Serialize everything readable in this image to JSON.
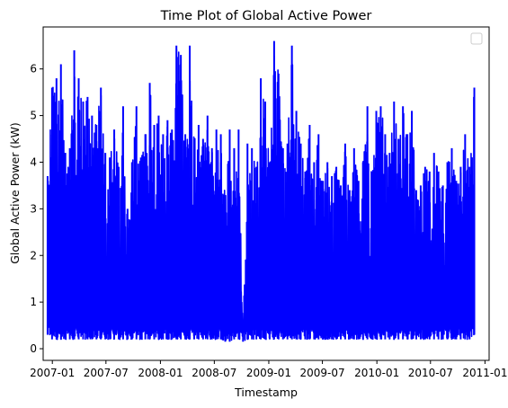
{
  "chart_data": {
    "type": "line",
    "title": "Time Plot of Global Active Power",
    "xlabel": "Timestamp",
    "ylabel": "Global Active Power (kW)",
    "ylim": [
      -0.25,
      6.9
    ],
    "xlim": [
      "2006-12-01",
      "2011-01-15"
    ],
    "grid": false,
    "legend": "top-right (empty box)",
    "x_ticks": [
      "2007-01",
      "2007-07",
      "2008-01",
      "2008-07",
      "2009-01",
      "2009-07",
      "2010-01",
      "2010-07",
      "2011-01"
    ],
    "y_ticks": [
      0,
      1,
      2,
      3,
      4,
      5,
      6
    ],
    "colors": {
      "series": "#0000ff"
    },
    "series": [
      {
        "x": [
          "2006-12-16",
          "2006-12-31",
          "2007-01-15",
          "2007-01-30",
          "2007-02-14",
          "2007-03-01",
          "2007-03-16",
          "2007-03-31",
          "2007-04-15",
          "2007-04-30",
          "2007-05-15",
          "2007-05-30",
          "2007-06-14",
          "2007-06-29",
          "2007-07-14",
          "2007-07-29",
          "2007-08-13",
          "2007-08-28",
          "2007-09-12",
          "2007-09-27",
          "2007-10-12",
          "2007-10-27",
          "2007-11-11",
          "2007-11-26",
          "2007-12-11",
          "2007-12-26",
          "2008-01-10",
          "2008-01-25",
          "2008-02-09",
          "2008-02-24",
          "2008-03-10",
          "2008-03-25",
          "2008-04-09",
          "2008-04-24",
          "2008-05-09",
          "2008-05-24",
          "2008-06-08",
          "2008-06-23",
          "2008-07-08",
          "2008-07-23",
          "2008-08-07",
          "2008-08-22",
          "2008-09-06",
          "2008-09-21",
          "2008-10-06",
          "2008-10-21",
          "2008-11-05",
          "2008-11-20",
          "2008-12-05",
          "2008-12-20",
          "2009-01-04",
          "2009-01-19",
          "2009-02-03",
          "2009-02-18",
          "2009-03-05",
          "2009-03-20",
          "2009-04-04",
          "2009-04-19",
          "2009-05-04",
          "2009-05-19",
          "2009-06-03",
          "2009-06-18",
          "2009-07-03",
          "2009-07-18",
          "2009-08-02",
          "2009-08-17",
          "2009-09-01",
          "2009-09-16",
          "2009-10-01",
          "2009-10-16",
          "2009-10-31",
          "2009-11-15",
          "2009-11-30",
          "2009-12-15",
          "2009-12-30",
          "2010-01-14",
          "2010-01-29",
          "2010-02-13",
          "2010-02-28",
          "2010-03-15",
          "2010-03-30",
          "2010-04-14",
          "2010-04-29",
          "2010-05-14",
          "2010-05-29",
          "2010-06-13",
          "2010-06-28",
          "2010-07-13",
          "2010-07-28",
          "2010-08-12",
          "2010-08-27",
          "2010-09-11",
          "2010-09-26",
          "2010-10-11",
          "2010-10-26",
          "2010-11-10",
          "2010-11-26"
        ],
        "max": [
          3.7,
          5.6,
          5.8,
          6.1,
          4.2,
          4.3,
          6.4,
          5.8,
          5.3,
          5.4,
          5.0,
          4.8,
          5.6,
          4.2,
          4.1,
          4.7,
          3.9,
          5.2,
          3.0,
          4.0,
          5.2,
          4.1,
          4.6,
          5.7,
          4.8,
          5.0,
          4.6,
          4.9,
          4.7,
          6.5,
          6.3,
          4.6,
          6.5,
          4.5,
          4.8,
          4.5,
          5.0,
          4.3,
          4.7,
          4.6,
          3.2,
          4.7,
          4.3,
          4.7,
          0.3,
          4.4,
          4.3,
          3.9,
          5.8,
          5.3,
          4.0,
          6.6,
          5.9,
          4.3,
          4.4,
          6.5,
          5.1,
          4.4,
          3.8,
          4.8,
          4.0,
          4.6,
          3.6,
          4.0,
          3.7,
          3.9,
          3.5,
          4.4,
          3.4,
          4.3,
          3.6,
          4.0,
          5.2,
          3.8,
          5.1,
          5.2,
          4.6,
          4.2,
          5.3,
          4.5,
          5.2,
          4.6,
          5.1,
          3.4,
          3.5,
          3.9,
          3.8,
          4.2,
          3.8,
          3.5,
          4.0,
          4.3,
          3.6,
          3.9,
          4.6,
          3.9,
          5.6
        ],
        "min": [
          0.3,
          0.2,
          0.2,
          0.2,
          0.2,
          0.2,
          0.2,
          0.2,
          0.2,
          0.2,
          0.2,
          0.2,
          0.2,
          0.2,
          0.2,
          0.2,
          0.2,
          0.2,
          0.2,
          0.2,
          0.2,
          0.2,
          0.2,
          0.2,
          0.2,
          0.2,
          0.2,
          0.2,
          0.2,
          0.2,
          0.2,
          0.2,
          0.2,
          0.2,
          0.2,
          0.2,
          0.2,
          0.2,
          0.2,
          0.2,
          0.15,
          0.15,
          0.2,
          0.2,
          0.15,
          0.2,
          0.2,
          0.2,
          0.2,
          0.2,
          0.2,
          0.2,
          0.2,
          0.2,
          0.2,
          0.2,
          0.2,
          0.2,
          0.2,
          0.2,
          0.2,
          0.2,
          0.2,
          0.2,
          0.2,
          0.2,
          0.2,
          0.2,
          0.2,
          0.2,
          0.2,
          0.2,
          0.2,
          0.2,
          0.2,
          0.2,
          0.2,
          0.2,
          0.2,
          0.2,
          0.2,
          0.2,
          0.2,
          0.2,
          0.2,
          0.2,
          0.2,
          0.2,
          0.2,
          0.2,
          0.2,
          0.2,
          0.2,
          0.2,
          0.2,
          0.2,
          0.3
        ]
      }
    ]
  }
}
